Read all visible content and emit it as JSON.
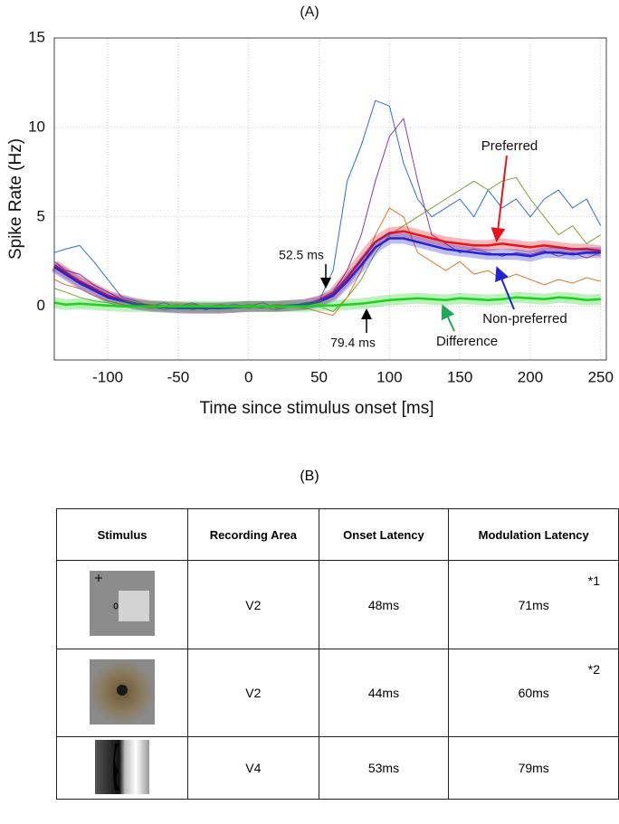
{
  "chart_data": {
    "type": "line",
    "title": "(A)",
    "x_label": "Time since stimulus onset [ms]",
    "y_label": "Spike Rate (Hz)",
    "x": [
      -138,
      -130,
      -120,
      -110,
      -100,
      -90,
      -80,
      -70,
      -60,
      -50,
      -40,
      -30,
      -20,
      -10,
      0,
      10,
      20,
      30,
      40,
      50,
      60,
      70,
      80,
      90,
      100,
      110,
      120,
      130,
      140,
      150,
      160,
      170,
      180,
      190,
      200,
      210,
      220,
      230,
      240,
      250
    ],
    "series": [
      {
        "color": "#2a6fcf",
        "values": [
          3,
          3.2,
          3.4,
          2.5,
          1.5,
          0.5,
          0.3,
          0,
          0.2,
          -0.1,
          0,
          -0.2,
          0.1,
          0,
          0,
          0.2,
          -0.1,
          0,
          0.2,
          0.3,
          2,
          7,
          9,
          11.5,
          11.2,
          8,
          6,
          5,
          5.5,
          6,
          5,
          6.5,
          5.5,
          6,
          5,
          6,
          6.5,
          5.5,
          6,
          4.5
        ]
      },
      {
        "color": "#8a3aa5",
        "values": [
          2.5,
          2,
          1.8,
          1.2,
          0.8,
          0.4,
          0.2,
          0,
          -0.1,
          0,
          0.2,
          -0.1,
          0,
          0.1,
          0,
          -0.1,
          0.1,
          0,
          0.1,
          0.4,
          0.8,
          2,
          4,
          7,
          9.5,
          10.5,
          7,
          4,
          3.5,
          3,
          3.2,
          3,
          2.8,
          3,
          2.9,
          3.1,
          2.8,
          3,
          2.7,
          3
        ]
      },
      {
        "color": "#7da33a",
        "values": [
          1,
          0.8,
          0.5,
          0.3,
          0.2,
          0,
          0.1,
          0,
          -0.2,
          0,
          0.1,
          0,
          -0.1,
          0,
          0.1,
          0,
          -0.2,
          0,
          0.1,
          0,
          -0.3,
          0.5,
          1.5,
          3,
          4,
          4.5,
          5,
          5.5,
          6,
          6.5,
          7,
          6.5,
          7,
          7.2,
          6,
          5,
          4,
          4.5,
          3.5,
          4
        ]
      },
      {
        "color": "#e0782a",
        "values": [
          1.5,
          1.2,
          1,
          0.6,
          0.3,
          0.1,
          0,
          -0.1,
          0,
          0.1,
          -0.2,
          0,
          0.1,
          0,
          -0.1,
          0,
          0.1,
          0,
          -0.1,
          -0.3,
          -0.5,
          0.5,
          2,
          4,
          5.5,
          5,
          3,
          2.5,
          2,
          2.5,
          1.8,
          2,
          1.5,
          1.8,
          1.5,
          1.2,
          1.5,
          1.3,
          1.6,
          1.4
        ]
      },
      {
        "name": "Preferred",
        "color": "#e8131b",
        "values": [
          2.3,
          1.9,
          1.4,
          1.0,
          0.6,
          0.35,
          0.15,
          0.05,
          0,
          -0.05,
          -0.1,
          -0.1,
          -0.1,
          -0.05,
          0,
          0,
          0,
          0.05,
          0.1,
          0.3,
          0.7,
          1.6,
          2.6,
          3.6,
          4.1,
          4.2,
          4.0,
          3.8,
          3.6,
          3.5,
          3.4,
          3.4,
          3.5,
          3.4,
          3.3,
          3.4,
          3.3,
          3.2,
          3.2,
          3.1
        ]
      },
      {
        "name": "Non-preferred",
        "color": "#2424d0",
        "values": [
          2.2,
          1.8,
          1.3,
          0.9,
          0.5,
          0.3,
          0.1,
          0,
          -0.05,
          -0.1,
          -0.1,
          -0.1,
          -0.1,
          -0.05,
          0,
          0,
          0,
          0.05,
          0.1,
          0.25,
          0.6,
          1.4,
          2.3,
          3.3,
          3.8,
          3.8,
          3.6,
          3.4,
          3.2,
          3.1,
          3.0,
          2.9,
          2.9,
          2.9,
          2.8,
          3.0,
          3.0,
          2.9,
          3.0,
          3.0
        ]
      },
      {
        "name": "Difference",
        "color": "#1fd11f",
        "values": [
          0.2,
          0.1,
          0.15,
          0.1,
          0.05,
          0,
          0,
          0,
          0,
          0,
          0,
          0,
          0,
          0,
          0,
          0,
          0,
          0,
          0,
          0.05,
          0.05,
          0.1,
          0.15,
          0.25,
          0.35,
          0.4,
          0.45,
          0.4,
          0.35,
          0.45,
          0.4,
          0.35,
          0.4,
          0.5,
          0.45,
          0.4,
          0.5,
          0.45,
          0.35,
          0.4
        ]
      }
    ],
    "annotations": [
      "52.5 ms",
      "79.4 ms"
    ],
    "xlim": [
      -138,
      254
    ],
    "ylim": [
      -3,
      15
    ],
    "xticks": [
      -100,
      -50,
      0,
      50,
      100,
      150,
      200,
      250
    ],
    "yticks": [
      0,
      5,
      10,
      15
    ],
    "grid": true
  },
  "table": {
    "title": "(B)",
    "header": [
      "Stimulus",
      "Recording Area",
      "Onset Latency",
      "Modulation Latency"
    ],
    "rows": [
      [
        "V2",
        "48ms",
        "71ms",
        "*1"
      ],
      [
        "V2",
        "44ms",
        "60ms",
        "*2"
      ],
      [
        "V4",
        "53ms",
        "79ms"
      ]
    ]
  }
}
